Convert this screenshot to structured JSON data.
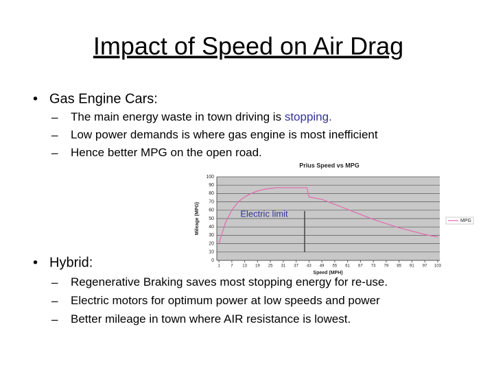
{
  "title": "Impact of Speed on Air Drag",
  "sections": [
    {
      "heading": "Gas Engine Cars:",
      "items": [
        [
          "The main energy waste in town driving is ",
          "stopping."
        ],
        [
          "Low power demands is where gas engine is most inefficient"
        ],
        [
          "Hence better MPG on the open road."
        ]
      ]
    },
    {
      "heading": "Hybrid:",
      "items": [
        [
          "Regenerative Braking saves most stopping energy for re-use."
        ],
        [
          "Electric motors for optimum power at low speeds and power"
        ],
        [
          "Better mileage in town where AIR resistance is lowest."
        ]
      ]
    }
  ],
  "chart_data": {
    "type": "line",
    "title": "Prius Speed vs MPG",
    "x_label": "Speed (MPH)",
    "y_label": "Mileage (MPG)",
    "annotation": "Electric limit",
    "x": [
      1,
      4,
      7,
      10,
      13,
      16,
      19,
      22,
      25,
      28,
      31,
      34,
      37,
      40,
      42,
      43,
      49,
      55,
      61,
      67,
      73,
      79,
      85,
      91,
      97,
      103
    ],
    "series": [
      {
        "name": "MPG",
        "color": "#e070b0",
        "values": [
          20,
          45,
          60,
          70,
          76,
          80,
          83,
          85,
          86,
          87,
          87,
          87,
          87,
          87,
          87,
          76,
          73,
          67,
          61,
          55,
          49,
          44,
          39,
          35,
          31,
          28
        ]
      }
    ],
    "xlim": [
      0,
      104
    ],
    "xticks": [
      1,
      7,
      13,
      19,
      25,
      31,
      37,
      43,
      49,
      55,
      61,
      67,
      73,
      79,
      85,
      91,
      97,
      103
    ],
    "ylim": [
      0,
      100
    ],
    "yticks": [
      0,
      10,
      20,
      30,
      40,
      50,
      60,
      70,
      80,
      90,
      100
    ],
    "grid": true,
    "legend": "right"
  }
}
